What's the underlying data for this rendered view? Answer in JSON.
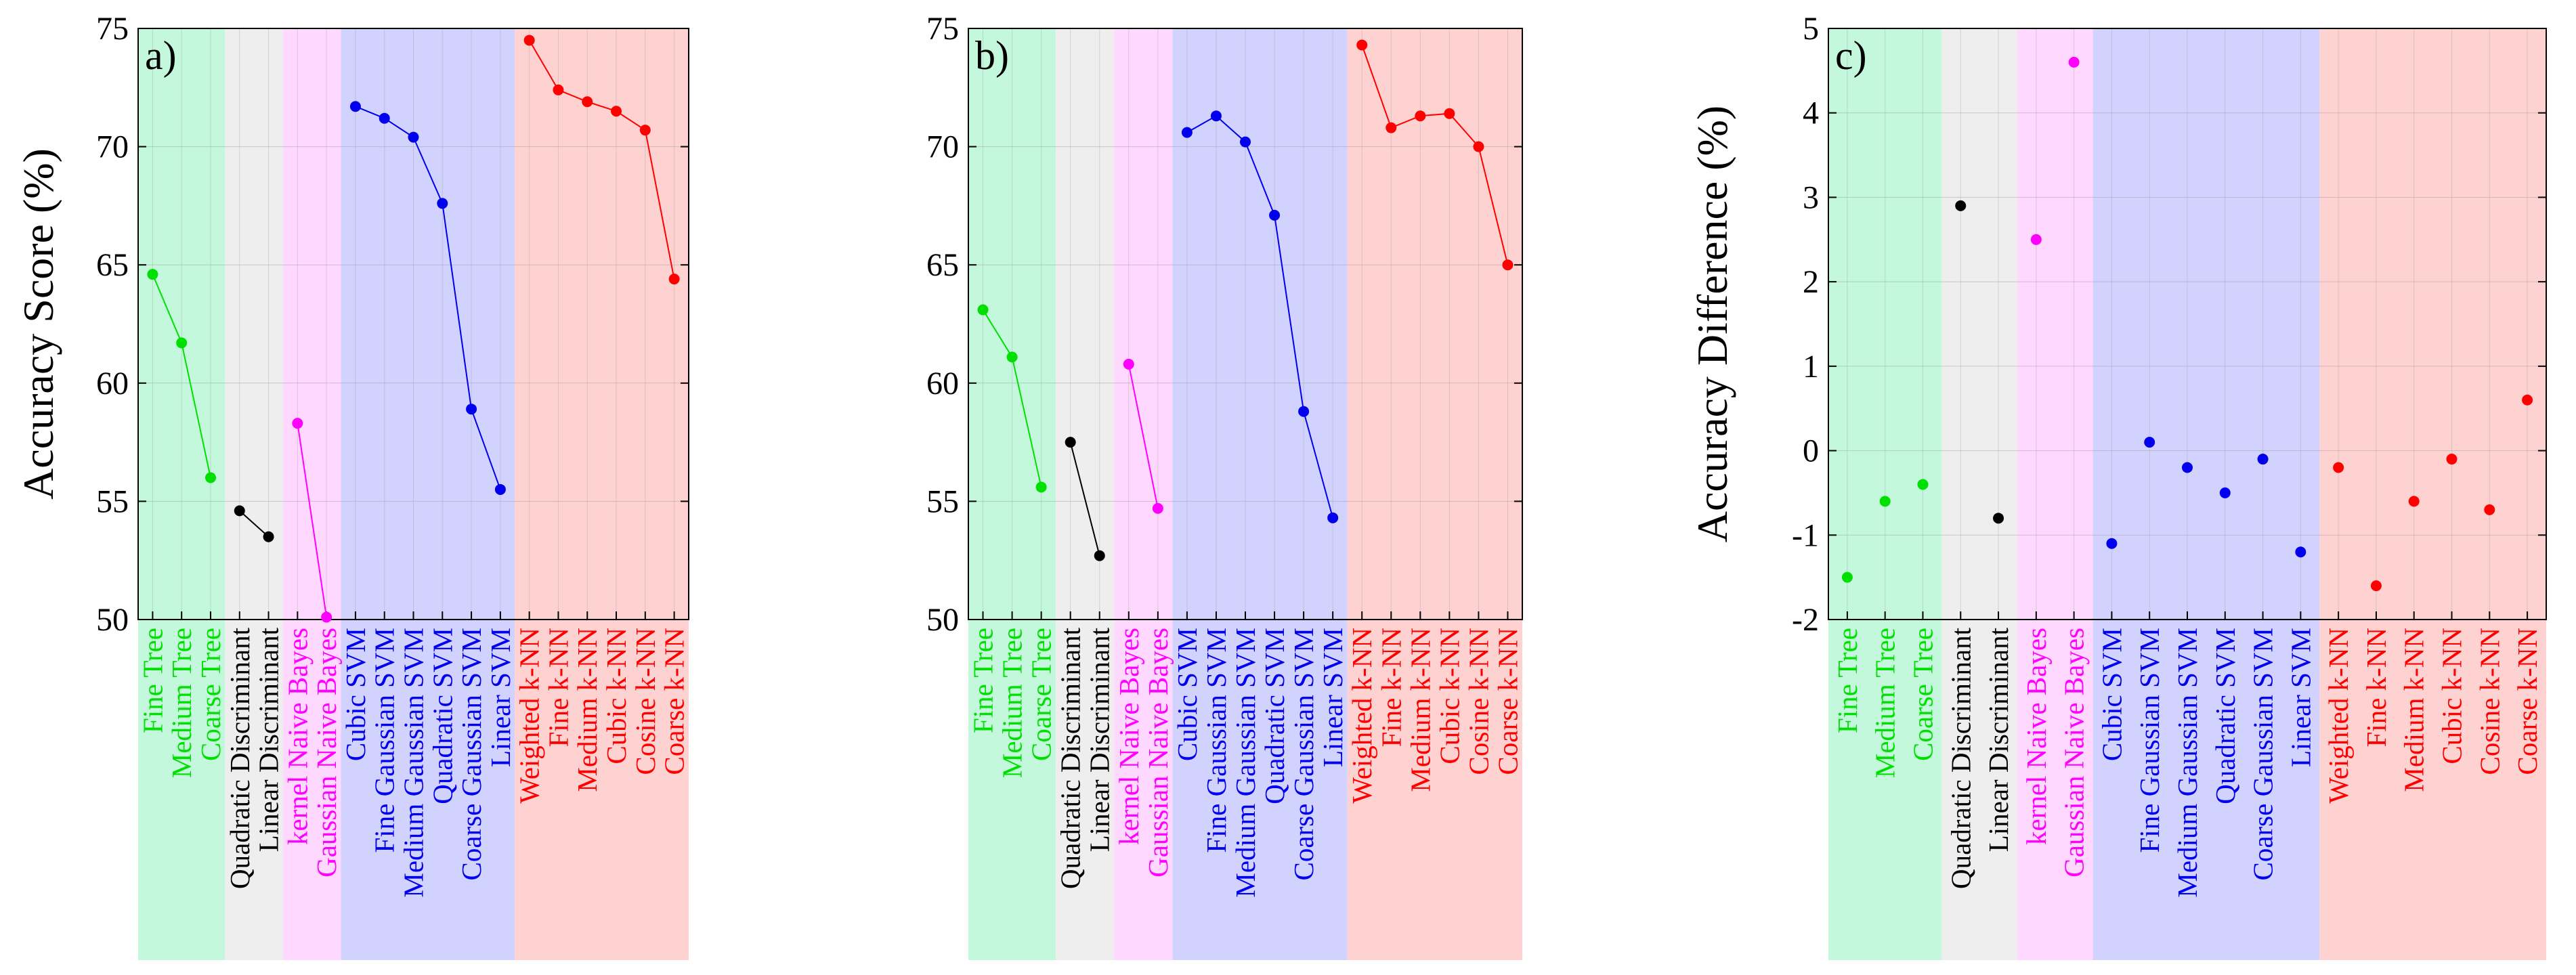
{
  "chart_data": [
    {
      "type": "line",
      "panel_label": "a)",
      "title": "",
      "xlabel": "",
      "ylabel": "Accuracy Score (%)",
      "ylim": [
        50,
        75
      ],
      "yticks": [
        50,
        55,
        60,
        65,
        70,
        75
      ],
      "grid": true,
      "connect": true,
      "groups": [
        {
          "name": "Tree",
          "color": "#00e000",
          "bg": "#c4f8dc",
          "models": [
            "Fine Tree",
            "Medium Tree",
            "Coarse Tree"
          ],
          "values": [
            64.6,
            61.7,
            56.0
          ]
        },
        {
          "name": "Discriminant",
          "color": "#000000",
          "bg": "#eeeeee",
          "models": [
            "Quadratic Discriminant",
            "Linear Discriminant"
          ],
          "values": [
            54.6,
            53.5
          ]
        },
        {
          "name": "Naive Bayes",
          "color": "#ff00ff",
          "bg": "#ffd8ff",
          "models": [
            "kernel Naive Bayes",
            "Gaussian Naive Bayes"
          ],
          "values": [
            58.3,
            50.1
          ]
        },
        {
          "name": "SVM",
          "color": "#0000ee",
          "bg": "#d2d2ff",
          "models": [
            "Cubic SVM",
            "Fine Gaussian SVM",
            "Medium Gaussian SVM",
            "Quadratic SVM",
            "Coarse Gaussian SVM",
            "Linear SVM"
          ],
          "values": [
            71.7,
            71.2,
            70.4,
            67.6,
            58.9,
            55.5
          ]
        },
        {
          "name": "k-NN",
          "color": "#ff0000",
          "bg": "#ffd2d2",
          "models": [
            "Weighted k-NN",
            "Fine k-NN",
            "Medium k-NN",
            "Cubic k-NN",
            "Cosine k-NN",
            "Coarse k-NN"
          ],
          "values": [
            74.5,
            72.4,
            71.9,
            71.5,
            70.7,
            64.4
          ]
        }
      ]
    },
    {
      "type": "line",
      "panel_label": "b)",
      "title": "",
      "xlabel": "",
      "ylabel": "",
      "ylim": [
        50,
        75
      ],
      "yticks": [
        50,
        55,
        60,
        65,
        70,
        75
      ],
      "grid": true,
      "connect": true,
      "groups": [
        {
          "name": "Tree",
          "color": "#00e000",
          "bg": "#c4f8dc",
          "models": [
            "Fine Tree",
            "Medium Tree",
            "Coarse Tree"
          ],
          "values": [
            63.1,
            61.1,
            55.6
          ]
        },
        {
          "name": "Discriminant",
          "color": "#000000",
          "bg": "#eeeeee",
          "models": [
            "Quadratic Discriminant",
            "Linear Discriminant"
          ],
          "values": [
            57.5,
            52.7
          ]
        },
        {
          "name": "Naive Bayes",
          "color": "#ff00ff",
          "bg": "#ffd8ff",
          "models": [
            "kernel Naive Bayes",
            "Gaussian Naive Bayes"
          ],
          "values": [
            60.8,
            54.7
          ]
        },
        {
          "name": "SVM",
          "color": "#0000ee",
          "bg": "#d2d2ff",
          "models": [
            "Cubic SVM",
            "Fine Gaussian SVM",
            "Medium Gaussian SVM",
            "Quadratic SVM",
            "Coarse Gaussian SVM",
            "Linear SVM"
          ],
          "values": [
            70.6,
            71.3,
            70.2,
            67.1,
            58.8,
            54.3
          ]
        },
        {
          "name": "k-NN",
          "color": "#ff0000",
          "bg": "#ffd2d2",
          "models": [
            "Weighted k-NN",
            "Fine k-NN",
            "Medium k-NN",
            "Cubic k-NN",
            "Cosine k-NN",
            "Coarse k-NN"
          ],
          "values": [
            74.3,
            70.8,
            71.3,
            71.4,
            70.0,
            65.0
          ]
        }
      ]
    },
    {
      "type": "scatter",
      "panel_label": "c)",
      "title": "",
      "xlabel": "",
      "ylabel": "Accuracy Difference (%)",
      "ylim": [
        -2,
        5
      ],
      "yticks": [
        -2,
        -1,
        0,
        1,
        2,
        3,
        4,
        5
      ],
      "grid": true,
      "connect": false,
      "groups": [
        {
          "name": "Tree",
          "color": "#00e000",
          "bg": "#c4f8dc",
          "models": [
            "Fine Tree",
            "Medium Tree",
            "Coarse Tree"
          ],
          "values": [
            -1.5,
            -0.6,
            -0.4
          ]
        },
        {
          "name": "Discriminant",
          "color": "#000000",
          "bg": "#eeeeee",
          "models": [
            "Quadratic Discriminant",
            "Linear Discriminant"
          ],
          "values": [
            2.9,
            -0.8
          ]
        },
        {
          "name": "Naive Bayes",
          "color": "#ff00ff",
          "bg": "#ffd8ff",
          "models": [
            "kernel Naive Bayes",
            "Gaussian Naive Bayes"
          ],
          "values": [
            2.5,
            4.6
          ]
        },
        {
          "name": "SVM",
          "color": "#0000ee",
          "bg": "#d2d2ff",
          "models": [
            "Cubic SVM",
            "Fine Gaussian SVM",
            "Medium Gaussian SVM",
            "Quadratic SVM",
            "Coarse Gaussian SVM",
            "Linear SVM"
          ],
          "values": [
            -1.1,
            0.1,
            -0.2,
            -0.5,
            -0.1,
            -1.2
          ]
        },
        {
          "name": "k-NN",
          "color": "#ff0000",
          "bg": "#ffd2d2",
          "models": [
            "Weighted k-NN",
            "Fine k-NN",
            "Medium k-NN",
            "Cubic k-NN",
            "Cosine k-NN",
            "Coarse k-NN"
          ],
          "values": [
            -0.2,
            -1.6,
            -0.6,
            -0.1,
            -0.7,
            0.6
          ]
        }
      ]
    }
  ]
}
